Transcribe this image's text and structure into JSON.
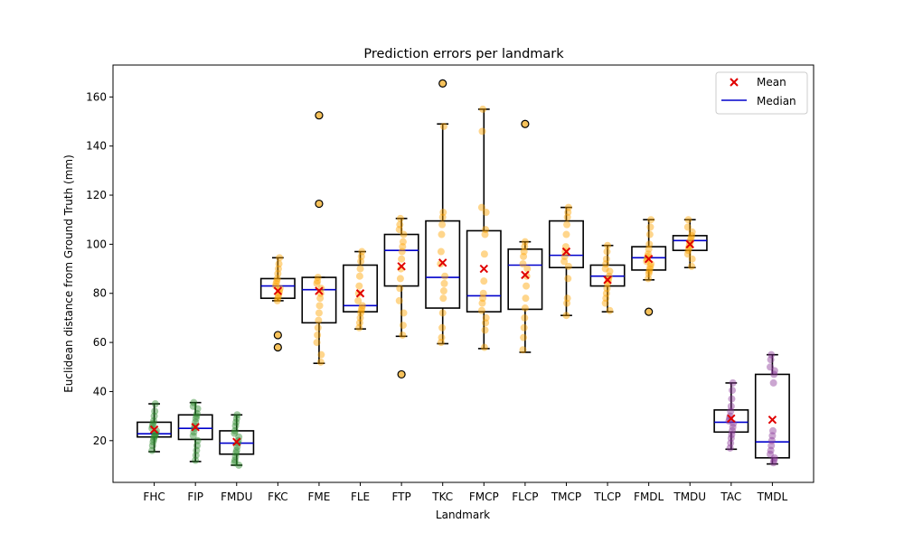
{
  "chart_data": {
    "type": "box",
    "title": "Prediction errors per landmark",
    "xlabel": "Landmark",
    "ylabel": "Euclidean distance from Ground Truth (mm)",
    "ylim": [
      3,
      173
    ],
    "yticks": [
      20,
      40,
      60,
      80,
      100,
      120,
      140,
      160
    ],
    "legend": {
      "position": "top-right",
      "entries": [
        {
          "label": "Mean",
          "marker": "x",
          "color": "#e00000"
        },
        {
          "label": "Median",
          "marker": "line",
          "color": "#0000cc"
        }
      ]
    },
    "point_colors": {
      "green": "#2e8b2e",
      "orange": "#ffa500",
      "purple": "#8b3a9a"
    },
    "boxes": [
      {
        "label": "FHC",
        "q1": 21.5,
        "median": 22.8,
        "q3": 27.5,
        "whisker_low": 15.5,
        "whisker_high": 35,
        "mean": 24.5,
        "outliers": [],
        "color": "green",
        "points": [
          16,
          18,
          19.5,
          20.5,
          21.5,
          22,
          22.5,
          23,
          24,
          25,
          26,
          27,
          28,
          30,
          32,
          35
        ]
      },
      {
        "label": "FIP",
        "q1": 20.5,
        "median": 25,
        "q3": 30.5,
        "whisker_low": 11.5,
        "whisker_high": 35.5,
        "mean": 25.5,
        "outliers": [],
        "color": "green",
        "points": [
          12,
          14,
          16,
          18,
          20,
          22,
          23.5,
          25,
          26,
          27.5,
          29,
          30,
          31,
          33,
          34,
          35.5
        ]
      },
      {
        "label": "FMDU",
        "q1": 14.5,
        "median": 19,
        "q3": 24,
        "whisker_low": 10,
        "whisker_high": 30.5,
        "mean": 19.5,
        "outliers": [],
        "color": "green",
        "points": [
          10,
          11,
          12,
          13.5,
          15,
          16,
          17.5,
          19,
          20,
          21.5,
          23,
          24,
          26,
          27.5,
          29,
          30.5
        ]
      },
      {
        "label": "FKC",
        "q1": 78,
        "median": 83,
        "q3": 86,
        "whisker_low": 77,
        "whisker_high": 94.5,
        "mean": 81,
        "outliers": [
          63,
          58
        ],
        "color": "orange",
        "points": [
          77,
          78,
          79,
          80,
          81,
          82,
          83,
          84,
          85,
          86,
          88,
          90,
          92,
          94.5
        ]
      },
      {
        "label": "FME",
        "q1": 68,
        "median": 81.5,
        "q3": 86.5,
        "whisker_low": 51.5,
        "whisker_high": 86.5,
        "mean": 81,
        "outliers": [
          152.5,
          116.5
        ],
        "color": "orange",
        "points": [
          52,
          55,
          60,
          63,
          66,
          69,
          72,
          75,
          78,
          80,
          82,
          84,
          85,
          86.5
        ]
      },
      {
        "label": "FLE",
        "q1": 72.5,
        "median": 75,
        "q3": 91.5,
        "whisker_low": 65.5,
        "whisker_high": 97,
        "mean": 80,
        "outliers": [],
        "color": "orange",
        "points": [
          66,
          68,
          70,
          72,
          73,
          74,
          75,
          77,
          80,
          83,
          87,
          90,
          93,
          95,
          97
        ]
      },
      {
        "label": "FTP",
        "q1": 83,
        "median": 97.5,
        "q3": 104,
        "whisker_low": 62.5,
        "whisker_high": 110.5,
        "mean": 91,
        "outliers": [
          47
        ],
        "color": "orange",
        "points": [
          63,
          67,
          72,
          77,
          82,
          86,
          90,
          94,
          97,
          99,
          101,
          104,
          106,
          108,
          110.5
        ]
      },
      {
        "label": "TKC",
        "q1": 74,
        "median": 86.5,
        "q3": 109.5,
        "whisker_low": 59.5,
        "whisker_high": 149,
        "mean": 92.5,
        "outliers": [
          165.5
        ],
        "color": "orange",
        "points": [
          60,
          62,
          66,
          72,
          78,
          81,
          84,
          87,
          92,
          97,
          104,
          108,
          111,
          113,
          148
        ]
      },
      {
        "label": "FMCP",
        "q1": 72.5,
        "median": 79,
        "q3": 105.5,
        "whisker_low": 57.5,
        "whisker_high": 155,
        "mean": 90,
        "outliers": [],
        "color": "orange",
        "points": [
          58,
          65,
          68,
          70,
          73,
          76,
          78,
          80,
          85,
          96,
          104,
          106,
          113,
          115,
          146,
          155
        ]
      },
      {
        "label": "FLCP",
        "q1": 73.5,
        "median": 91.5,
        "q3": 98,
        "whisker_low": 56,
        "whisker_high": 101,
        "mean": 87.5,
        "outliers": [
          149
        ],
        "color": "orange",
        "points": [
          57,
          62,
          66,
          70,
          74,
          78,
          83,
          87,
          90,
          92,
          95,
          97,
          99,
          101
        ]
      },
      {
        "label": "TMCP",
        "q1": 90.5,
        "median": 95.5,
        "q3": 109.5,
        "whisker_low": 71,
        "whisker_high": 115,
        "mean": 97,
        "outliers": [],
        "color": "orange",
        "points": [
          71,
          76,
          78,
          86,
          91,
          93,
          95,
          97,
          99,
          104,
          108,
          111,
          113,
          115
        ]
      },
      {
        "label": "TLCP",
        "q1": 83,
        "median": 87,
        "q3": 91.5,
        "whisker_low": 72.5,
        "whisker_high": 99.5,
        "mean": 85.5,
        "outliers": [],
        "color": "orange",
        "points": [
          73,
          76,
          78,
          80,
          82,
          84,
          85,
          86,
          87,
          89,
          90,
          92,
          94,
          97,
          99.5
        ]
      },
      {
        "label": "FMDL",
        "q1": 89.5,
        "median": 94.5,
        "q3": 99,
        "whisker_low": 85.5,
        "whisker_high": 110,
        "mean": 94,
        "outliers": [
          72.5
        ],
        "color": "orange",
        "points": [
          86,
          88,
          89,
          90,
          91,
          92,
          93,
          94,
          95,
          96,
          98,
          100,
          104,
          107,
          110
        ]
      },
      {
        "label": "TMDU",
        "q1": 97.5,
        "median": 101.5,
        "q3": 103.5,
        "whisker_low": 90.5,
        "whisker_high": 110,
        "mean": 100,
        "outliers": [],
        "color": "orange",
        "points": [
          91,
          94,
          96,
          97.5,
          98.5,
          99.5,
          100.5,
          101.5,
          102.5,
          103.5,
          105,
          107,
          110
        ]
      },
      {
        "label": "TAC",
        "q1": 23.5,
        "median": 27.5,
        "q3": 32.5,
        "whisker_low": 16.5,
        "whisker_high": 43.5,
        "mean": 29,
        "outliers": [],
        "color": "purple",
        "points": [
          17,
          19,
          21,
          22.5,
          24,
          25.5,
          27,
          28,
          29,
          30,
          32,
          34,
          37,
          40.5,
          43.5
        ]
      },
      {
        "label": "TMDL",
        "q1": 13,
        "median": 19.5,
        "q3": 47,
        "whisker_low": 10.5,
        "whisker_high": 55,
        "mean": 28.5,
        "outliers": [],
        "color": "purple",
        "points": [
          11,
          12,
          13,
          14.5,
          16,
          18,
          20,
          22,
          24,
          43.5,
          47,
          48.5,
          50,
          53,
          55
        ]
      }
    ]
  }
}
